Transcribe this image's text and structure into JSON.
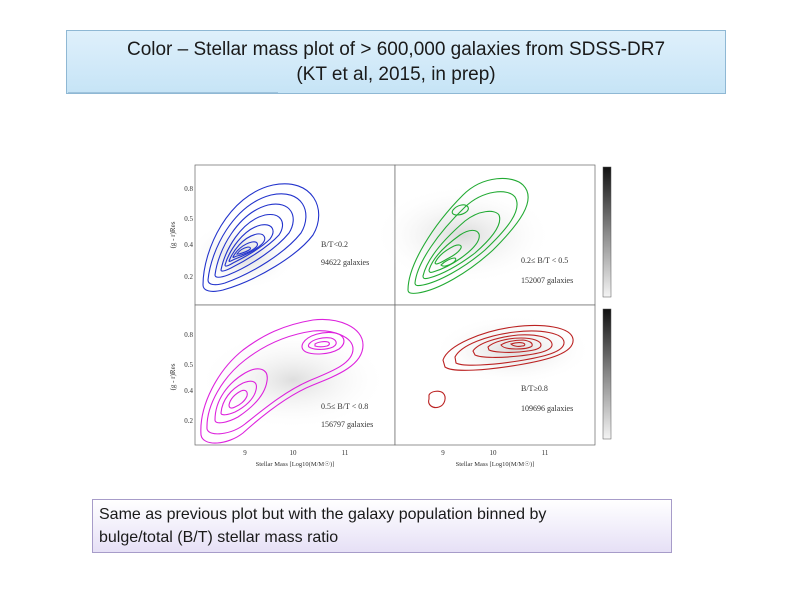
{
  "slide": {
    "title_line1": "Color – Stellar mass plot of > 600,000 galaxies from SDSS-DR7",
    "title_line2": "(KT et al, 2015, in prep)",
    "caption_line1": "Same as previous plot but with the galaxy population binned by",
    "caption_line2": "bulge/total (B/T) stellar mass ratio"
  },
  "chart_data": [
    {
      "type": "contour",
      "panel": "top-left",
      "color": "#2233cc",
      "xlabel": "Stellar Mass [Log10(M/M☉)]",
      "ylabel": "(g - r)Res",
      "xticks": [
        "9",
        "10",
        "11"
      ],
      "yticks": [
        "0.2",
        "0.4",
        "0.5",
        "0.8"
      ],
      "label_line1": "B/T<0.2",
      "label_line2": "94622 galaxies"
    },
    {
      "type": "contour",
      "panel": "top-right",
      "color": "#22aa33",
      "label_line1": "0.2≤ B/T < 0.5",
      "label_line2": "152007 galaxies"
    },
    {
      "type": "contour",
      "panel": "bottom-left",
      "color": "#dd22dd",
      "xlabel": "Stellar Mass [Log10(M/M☉)]",
      "ylabel": "(g - r)Res",
      "xticks": [
        "9",
        "10",
        "11"
      ],
      "yticks": [
        "0.2",
        "0.4",
        "0.5",
        "0.8"
      ],
      "label_line1": "0.5≤ B/T < 0.8",
      "label_line2": "156797 galaxies"
    },
    {
      "type": "contour",
      "panel": "bottom-right",
      "color": "#bb2222",
      "xlabel": "Stellar Mass [Log10(M/M☉)]",
      "xticks": [
        "9",
        "10",
        "11"
      ],
      "label_line1": "B/T≥0.8",
      "label_line2": "109696 galaxies"
    }
  ]
}
